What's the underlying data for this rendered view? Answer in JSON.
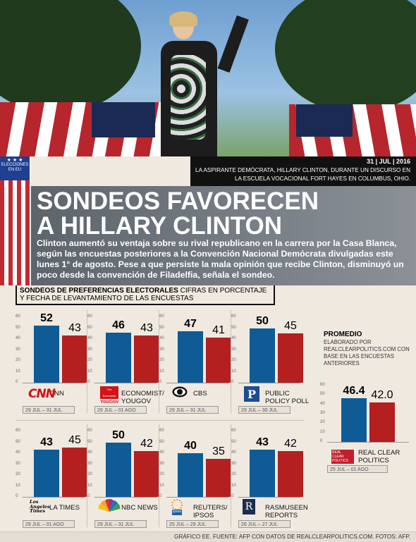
{
  "photo_caption": {
    "date": "31 | JUL | 2016",
    "text": "LA ASPIRANTE DEMÓCRATA, HILLARY CLINTON, DURANTE UN DISCURSO EN LA ESCUELA VOCACIONAL FORT HAYES EN COLUMBUS, OHIO."
  },
  "badge": {
    "line1": "ELECCIONES",
    "line2": "EN EU",
    "stars": "★ ★ ★"
  },
  "headline": {
    "line1": "SONDEOS FAVORECEN",
    "line2": "A HILLARY CLINTON"
  },
  "lede": "Clinton aumentó su ventaja sobre su rival republicano en la carrera por la Casa Blanca, según las encuestas posteriores a la Convención Nacional Demócrata divulgadas este lunes 1° de agosto. Pese a que persiste la mala opinión que recibe Clinton, disminuyó un poco desde la convención de Filadelfia, señala el sondeo.",
  "section": {
    "title": "SONDEOS DE PREFERENCIAS ELECTORALES",
    "subtitle_a": " CIFRAS EN PORCENTAJE",
    "subtitle_b": "Y FECHA DE LEVANTAMIENTO DE LAS ENCUESTAS"
  },
  "promedio": {
    "title": "PROMEDIO",
    "subtitle": "ELABORADO POR REALCLEARPOLITICS.COM CON BASE EN LAS ENCUESTAS ANTERIORES"
  },
  "colors": {
    "democrat": "#0e5b96",
    "republican": "#b3201f",
    "band": "#737a81"
  },
  "chart_data": [
    {
      "type": "bar",
      "source": "CNN",
      "dates": "29 JUL – 31 JUL",
      "values": [
        52,
        43
      ],
      "ylim": [
        0,
        60
      ],
      "yticks": [
        "0",
        "10",
        "20",
        "30",
        "40",
        "50",
        "60"
      ]
    },
    {
      "type": "bar",
      "source": "ECONOMIST/ YOUGOV",
      "dates": "29 JUL – 01 AGO",
      "values": [
        46,
        43
      ],
      "ylim": [
        0,
        60
      ],
      "yticks": [
        "0",
        "10",
        "20",
        "30",
        "40",
        "50",
        "60"
      ]
    },
    {
      "type": "bar",
      "source": "CBS",
      "dates": "29 JUL – 31 JUL",
      "values": [
        47,
        41
      ],
      "ylim": [
        0,
        60
      ],
      "yticks": [
        "0",
        "10",
        "20",
        "30",
        "40",
        "50",
        "60"
      ]
    },
    {
      "type": "bar",
      "source": "PUBLIC POLICY POLL",
      "dates": "29 JUL – 30 JUL",
      "values": [
        50,
        45
      ],
      "ylim": [
        0,
        60
      ],
      "yticks": [
        "0",
        "10",
        "20",
        "30",
        "40",
        "50",
        "60"
      ]
    },
    {
      "type": "bar",
      "source": "LA TIMES",
      "dates": "29 JUL – 01 AGO",
      "values": [
        43,
        45
      ],
      "ylim": [
        0,
        60
      ],
      "yticks": [
        "0",
        "10",
        "20",
        "30",
        "40",
        "50",
        "60"
      ]
    },
    {
      "type": "bar",
      "source": "NBC NEWS",
      "dates": "29 JUL – 31 JUL",
      "values": [
        50,
        42
      ],
      "ylim": [
        0,
        60
      ],
      "yticks": [
        "0",
        "10",
        "20",
        "30",
        "40",
        "50",
        "60"
      ]
    },
    {
      "type": "bar",
      "source": "REUTERS/ IPSOS",
      "dates": "25 JUL – 29 JUL",
      "values": [
        40,
        35
      ],
      "ylim": [
        0,
        60
      ],
      "yticks": [
        "0",
        "10",
        "20",
        "30",
        "40",
        "50",
        "60"
      ]
    },
    {
      "type": "bar",
      "source": "RASMUSEEN REPORTS",
      "dates": "26 JUL – 27 JUL",
      "values": [
        43,
        42
      ],
      "ylim": [
        0,
        60
      ],
      "yticks": [
        "0",
        "10",
        "20",
        "30",
        "40",
        "50",
        "60"
      ]
    },
    {
      "type": "bar",
      "source": "REAL CLEAR POLITICS",
      "dates": "25 JUL – 01 AGO",
      "values": [
        46.4,
        42.0
      ],
      "value_labels": [
        "46.4",
        "42.0"
      ],
      "ylim": [
        0,
        60
      ],
      "yticks": [
        "0",
        "10",
        "20",
        "30",
        "40",
        "50",
        "60"
      ]
    }
  ],
  "logos": {
    "cnn": "CNN",
    "economist": "The Economist",
    "yougov": "YouGov",
    "latimes": "Los Angeles Times",
    "ipsos": "Ipsos",
    "rasmussen": "R",
    "rcp": "REAL CLEAR POLITICS"
  },
  "footer": "GRÁFICO EE. FUENTE: AFP CON DATOS DE REALCLEARPOLITICS.COM. FOTOS: AFP."
}
